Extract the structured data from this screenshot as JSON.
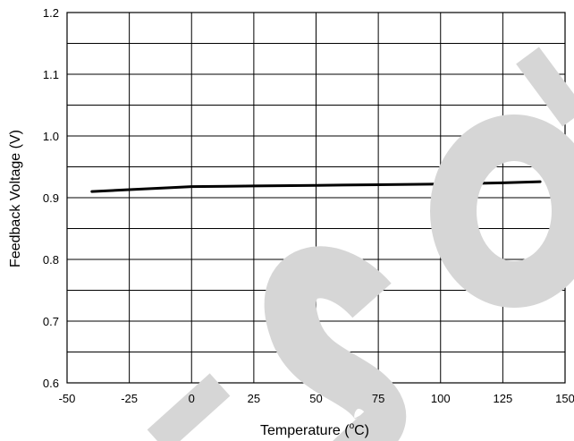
{
  "chart_data": {
    "type": "line",
    "title": "",
    "xlabel": "Temperature (°C)",
    "xlabel_parts": {
      "before": "Temperature (",
      "sup": "o",
      "after": "C)"
    },
    "ylabel": "Feedback Voltage (V)",
    "xlim": [
      -50,
      150
    ],
    "ylim": [
      0.6,
      1.2
    ],
    "xticks": [
      -50,
      -25,
      0,
      25,
      50,
      75,
      100,
      125,
      150
    ],
    "yticks": [
      "0.6",
      "0.7",
      "0.8",
      "0.9",
      "1.0",
      "1.1",
      "1.2"
    ],
    "grid": true,
    "legend": "none",
    "series": [
      {
        "color": "#000000",
        "x": [
          -40,
          -25,
          -10,
          0,
          25,
          50,
          75,
          100,
          125,
          140
        ],
        "y": [
          0.91,
          0.913,
          0.916,
          0.918,
          0.919,
          0.92,
          0.921,
          0.922,
          0.924,
          0.926
        ]
      }
    ]
  },
  "watermark": {
    "text": "SO",
    "color": "#d6d6d6"
  }
}
